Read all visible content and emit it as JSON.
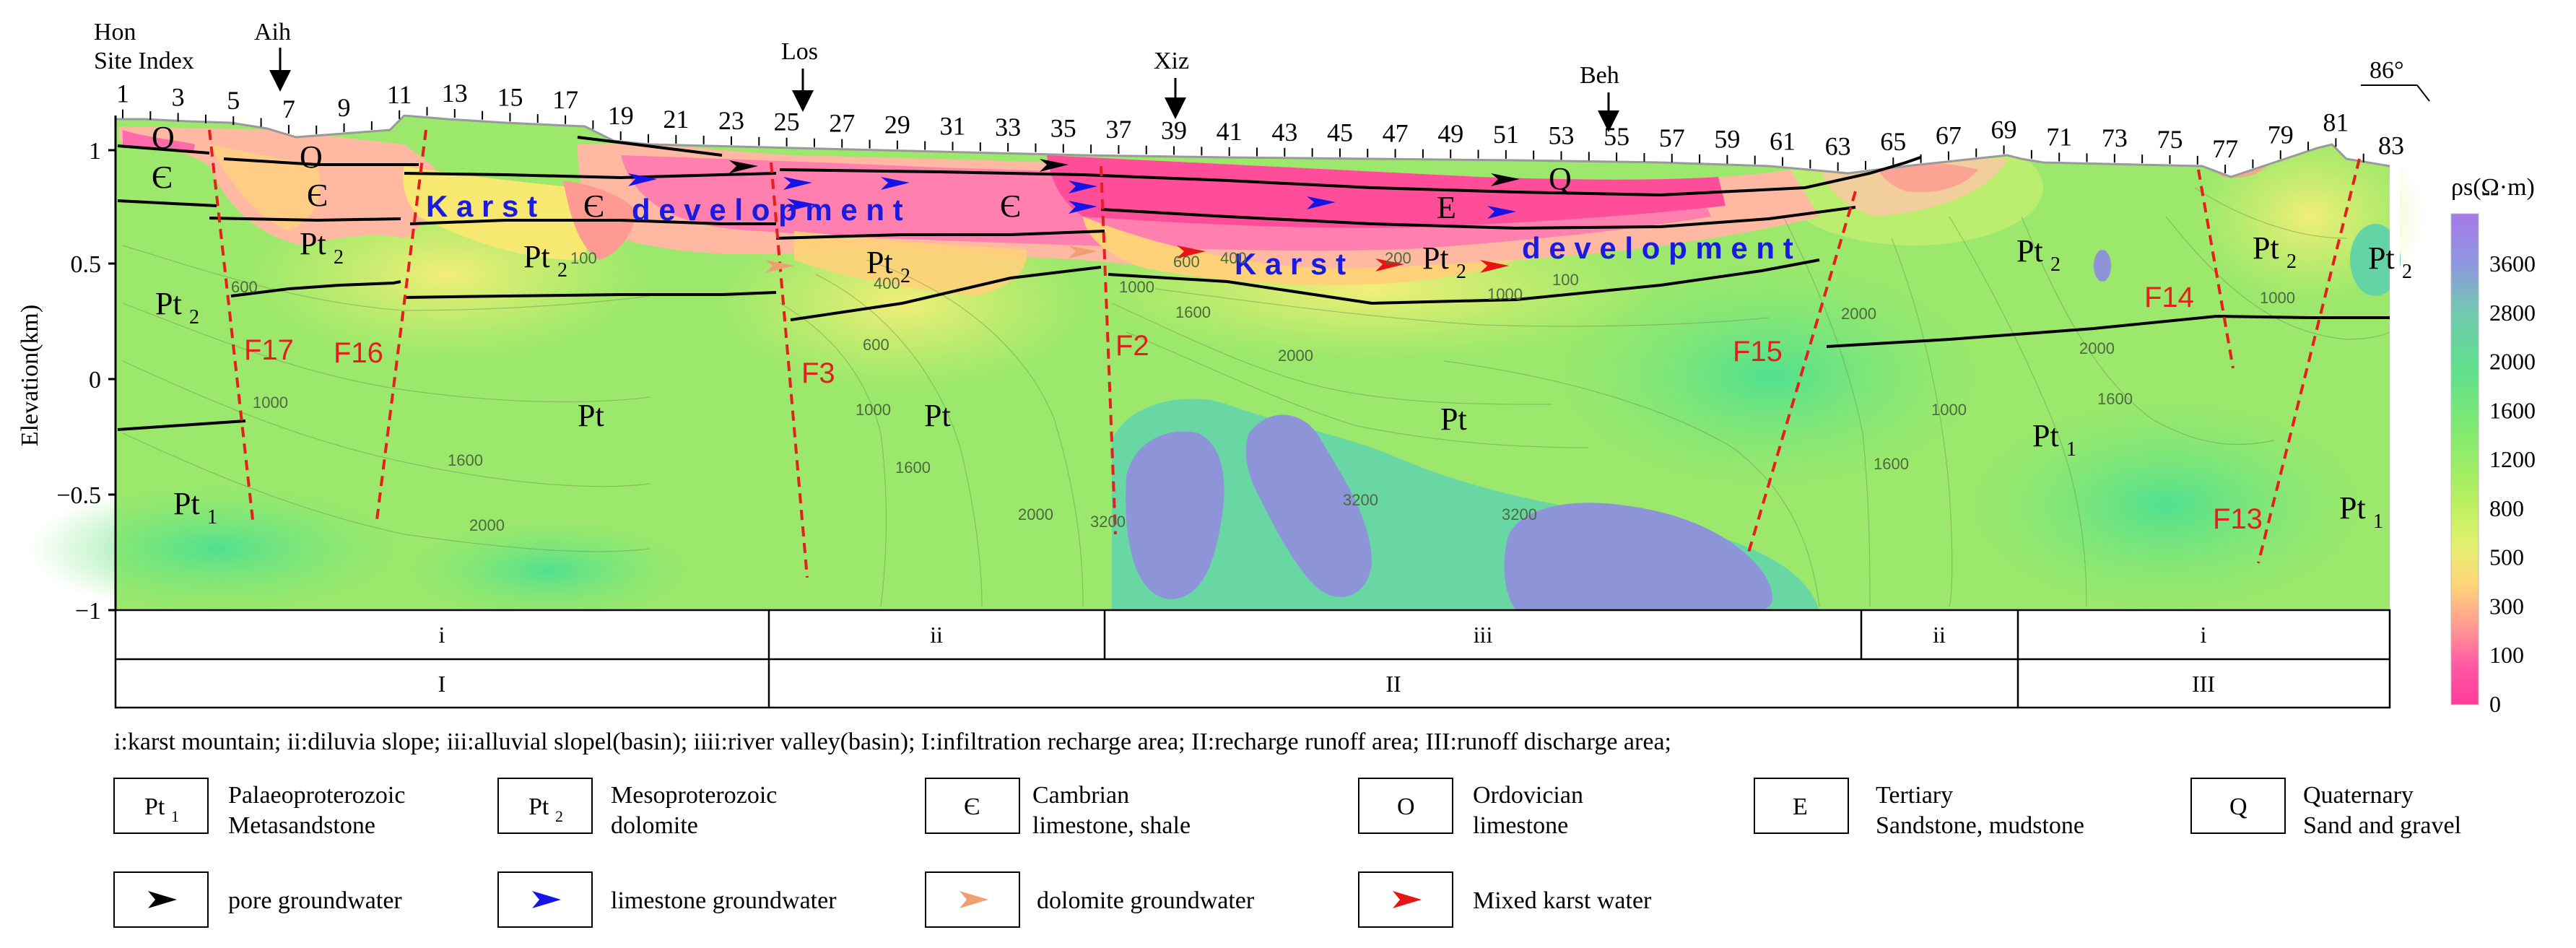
{
  "top_labels": {
    "hon": "Hon",
    "site_index": "Site Index",
    "aih": "Aih",
    "los": "Los",
    "xiz": "Xiz",
    "beh": "Beh",
    "angle": "86°"
  },
  "site_numbers": [
    "1",
    "3",
    "5",
    "7",
    "9",
    "11",
    "13",
    "15",
    "17",
    "19",
    "21",
    "23",
    "25",
    "27",
    "29",
    "31",
    "33",
    "35",
    "37",
    "39",
    "41",
    "43",
    "45",
    "47",
    "49",
    "51",
    "53",
    "55",
    "57",
    "59",
    "61",
    "63",
    "65",
    "67",
    "69",
    "71",
    "73",
    "75",
    "77",
    "79",
    "81",
    "83"
  ],
  "y_axis": {
    "title": "Elevation(km)",
    "ticks": [
      "1",
      "0.5",
      "0",
      "−0.5",
      "−1"
    ]
  },
  "colorbar": {
    "title": "ρs(Ω·m)",
    "labels": [
      "3600",
      "2800",
      "2000",
      "1600",
      "1200",
      "800",
      "500",
      "300",
      "100",
      "0"
    ]
  },
  "strata": {
    "o1": "O",
    "o2": "O",
    "c1": "Є",
    "c2": "Є",
    "c3": "Є",
    "c4": "Є",
    "e": "E",
    "q": "Q",
    "pt2_1": "Pt",
    "pt2_2": "Pt",
    "pt2_3": "Pt",
    "pt2_4": "Pt",
    "pt2_5": "Pt",
    "pt2_6": "Pt",
    "pt2_7": "Pt",
    "pt2_8": "Pt",
    "sub2": "2",
    "sub1": "1",
    "pt_1": "Pt",
    "pt_2": "Pt",
    "pt_3": "Pt",
    "pt1_1": "Pt",
    "pt1_2": "Pt",
    "pt1_3": "Pt"
  },
  "karst_text": {
    "karst1": "K a r s t",
    "dev1": "d e v e l o p m e n t",
    "karst2": "K a r s t",
    "dev2": "d e v e l o p m e n t"
  },
  "faults": [
    "F17",
    "F16",
    "F3",
    "F2",
    "F15",
    "F14",
    "F13"
  ],
  "contour_labels": [
    "600",
    "1000",
    "1600",
    "2000",
    "400",
    "600",
    "1000",
    "1600",
    "2000",
    "3200",
    "1000",
    "1600",
    "2000",
    "3200",
    "3200",
    "1000",
    "2000",
    "1600",
    "1000",
    "2000",
    "1600",
    "1000",
    "600",
    "400",
    "200",
    "100",
    "100"
  ],
  "zone_rows": {
    "row1": [
      "i",
      "ii",
      "iii",
      "ii",
      "i"
    ],
    "row2": [
      "I",
      "II",
      "III"
    ]
  },
  "caption": "i:karst mountain; ii:diluvia slope; iii:alluvial slopel(basin); iiii:river valley(basin); I:infiltration recharge area; II:recharge runoff area; III:runoff discharge area;",
  "legend": {
    "units": [
      {
        "symbol": "Pt",
        "sub": "1",
        "line1": "Palaeoproterozoic",
        "line2": "Metasandstone"
      },
      {
        "symbol": "Pt",
        "sub": "2",
        "line1": "Mesoproterozoic",
        "line2": "dolomite"
      },
      {
        "symbol": "Є",
        "sub": "",
        "line1": "Cambrian",
        "line2": "limestone, shale"
      },
      {
        "symbol": "O",
        "sub": "",
        "line1": "Ordovician",
        "line2": "limestone"
      },
      {
        "symbol": "E",
        "sub": "",
        "line1": "Tertiary",
        "line2": "Sandstone, mudstone"
      },
      {
        "symbol": "Q",
        "sub": "",
        "line1": "Quaternary",
        "line2": "Sand and gravel"
      }
    ],
    "flows": [
      {
        "label": "pore groundwater",
        "color": "#000000"
      },
      {
        "label": "limestone groundwater",
        "color": "#1414e6"
      },
      {
        "label": "dolomite groundwater",
        "color": "#f0a070"
      },
      {
        "label": "Mixed karst water",
        "color": "#e61414"
      }
    ]
  },
  "colors": {
    "fault": "#e61e1e",
    "karst_text": "#1a1ae0"
  }
}
